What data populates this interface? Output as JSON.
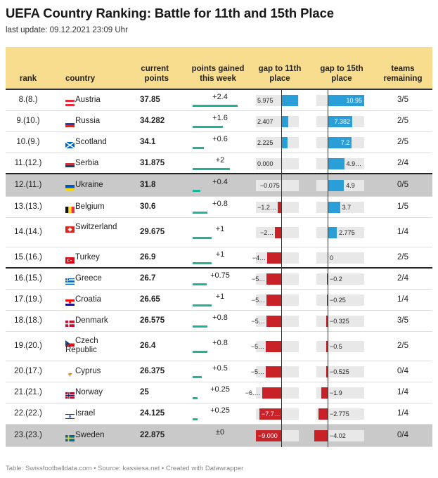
{
  "title": "UEFA Country Ranking: Battle for 11th and 15th Place",
  "subtitle": "last update: 09.12.2021 23:09 Uhr",
  "footer": "Table: Swissfootballdata.com • Source: kassiesa.net • Created with Datawrapper",
  "columns": {
    "rank": "rank",
    "country": "country",
    "current_points": "current points",
    "points_gained": "points gained this week",
    "gap11": "gap to 11th place",
    "gap15": "gap to 15th place",
    "teams": "teams remaining"
  },
  "colors": {
    "header": "#f9dd8e",
    "positive": "#2a9fd7",
    "negative": "#c82128",
    "gained": "#1fb39a",
    "highlight": "#c9c9c9"
  },
  "chart_data": {
    "type": "table",
    "rows": [
      {
        "rank": "8.(8.)",
        "country": "Austria",
        "flag": "flag-austria",
        "points": "37.85",
        "gained": "+2.4",
        "gained_value": 2.4,
        "gap11": "5.975",
        "gap11_value": 5.975,
        "gap15": "10.95",
        "gap15_value": 10.95,
        "teams": "3/5"
      },
      {
        "rank": "9.(10.)",
        "country": "Russia",
        "flag": "flag-russia",
        "points": "34.282",
        "gained": "+1.6",
        "gained_value": 1.6,
        "gap11": "2.407",
        "gap11_value": 2.407,
        "gap15": "7.382",
        "gap15_value": 7.382,
        "teams": "2/5"
      },
      {
        "rank": "10.(9.)",
        "country": "Scotland",
        "flag": "flag-scotland",
        "points": "34.1",
        "gained": "+0.6",
        "gained_value": 0.6,
        "gap11": "2.225",
        "gap11_value": 2.225,
        "gap15": "7.2",
        "gap15_value": 7.2,
        "teams": "2/5"
      },
      {
        "rank": "11.(12.)",
        "country": "Serbia",
        "flag": "flag-serbia",
        "points": "31.875",
        "gained": "+2",
        "gained_value": 2,
        "gap11": "0.000",
        "gap11_value": 0,
        "gap15": "4.9…",
        "gap15_value": 4.975,
        "teams": "2/4"
      },
      {
        "rank": "12.(11.)",
        "country": "Ukraine",
        "flag": "flag-ukraine",
        "points": "31.8",
        "gained": "+0.4",
        "gained_value": 0.4,
        "gap11": "−0.075",
        "gap11_value": -0.075,
        "gap15": "4.9",
        "gap15_value": 4.9,
        "teams": "0/5"
      },
      {
        "rank": "13.(13.)",
        "country": "Belgium",
        "flag": "flag-belgium",
        "points": "30.6",
        "gained": "+0.8",
        "gained_value": 0.8,
        "gap11": "−1.2…",
        "gap11_value": -1.275,
        "gap15": "3.7",
        "gap15_value": 3.7,
        "teams": "1/5"
      },
      {
        "rank": "14.(14.)",
        "country": "Switzerland",
        "flag": "flag-switzerland",
        "points": "29.675",
        "gained": "+1",
        "gained_value": 1,
        "gap11": "−2…",
        "gap11_value": -2.2,
        "gap15": "2.775",
        "gap15_value": 2.775,
        "teams": "1/4"
      },
      {
        "rank": "15.(16.)",
        "country": "Turkey",
        "flag": "flag-turkey",
        "points": "26.9",
        "gained": "+1",
        "gained_value": 1,
        "gap11": "−4…",
        "gap11_value": -4.975,
        "gap15": "0",
        "gap15_value": 0,
        "teams": "2/5"
      },
      {
        "rank": "16.(15.)",
        "country": "Greece",
        "flag": "flag-greece",
        "points": "26.7",
        "gained": "+0.75",
        "gained_value": 0.75,
        "gap11": "−5…",
        "gap11_value": -5.175,
        "gap15": "−0.2",
        "gap15_value": -0.2,
        "teams": "2/4"
      },
      {
        "rank": "17.(19.)",
        "country": "Croatia",
        "flag": "flag-croatia",
        "points": "26.65",
        "gained": "+1",
        "gained_value": 1,
        "gap11": "−5…",
        "gap11_value": -5.225,
        "gap15": "−0.25",
        "gap15_value": -0.25,
        "teams": "1/4"
      },
      {
        "rank": "18.(18.)",
        "country": "Denmark",
        "flag": "flag-denmark",
        "points": "26.575",
        "gained": "+0.8",
        "gained_value": 0.8,
        "gap11": "−5…",
        "gap11_value": -5.3,
        "gap15": "−0.325",
        "gap15_value": -0.325,
        "teams": "3/5"
      },
      {
        "rank": "19.(20.)",
        "country": "Czech Republic",
        "flag": "flag-czech-republic",
        "points": "26.4",
        "gained": "+0.8",
        "gained_value": 0.8,
        "gap11": "−5…",
        "gap11_value": -5.475,
        "gap15": "−0.5",
        "gap15_value": -0.5,
        "teams": "2/5"
      },
      {
        "rank": "20.(17.)",
        "country": "Cyprus",
        "flag": "flag-cyprus",
        "points": "26.375",
        "gained": "+0.5",
        "gained_value": 0.5,
        "gap11": "−5…",
        "gap11_value": -5.5,
        "gap15": "−0.525",
        "gap15_value": -0.525,
        "teams": "0/4"
      },
      {
        "rank": "21.(21.)",
        "country": "Norway",
        "flag": "flag-norway",
        "points": "25",
        "gained": "+0.25",
        "gained_value": 0.25,
        "gap11": "−6.…",
        "gap11_value": -6.875,
        "gap15": "−1.9",
        "gap15_value": -1.9,
        "teams": "1/4"
      },
      {
        "rank": "22.(22.)",
        "country": "Israel",
        "flag": "flag-israel",
        "points": "24.125",
        "gained": "+0.25",
        "gained_value": 0.25,
        "gap11": "−7.7…",
        "gap11_value": -7.75,
        "gap15": "−2.775",
        "gap15_value": -2.775,
        "teams": "1/4"
      },
      {
        "rank": "23.(23.)",
        "country": "Sweden",
        "flag": "flag-sweden",
        "points": "22.875",
        "gained": "±0",
        "gained_value": 0,
        "gap11": "−9.000",
        "gap11_value": -9,
        "gap15": "−4.02",
        "gap15_value": -4.02,
        "teams": "0/4"
      }
    ]
  }
}
